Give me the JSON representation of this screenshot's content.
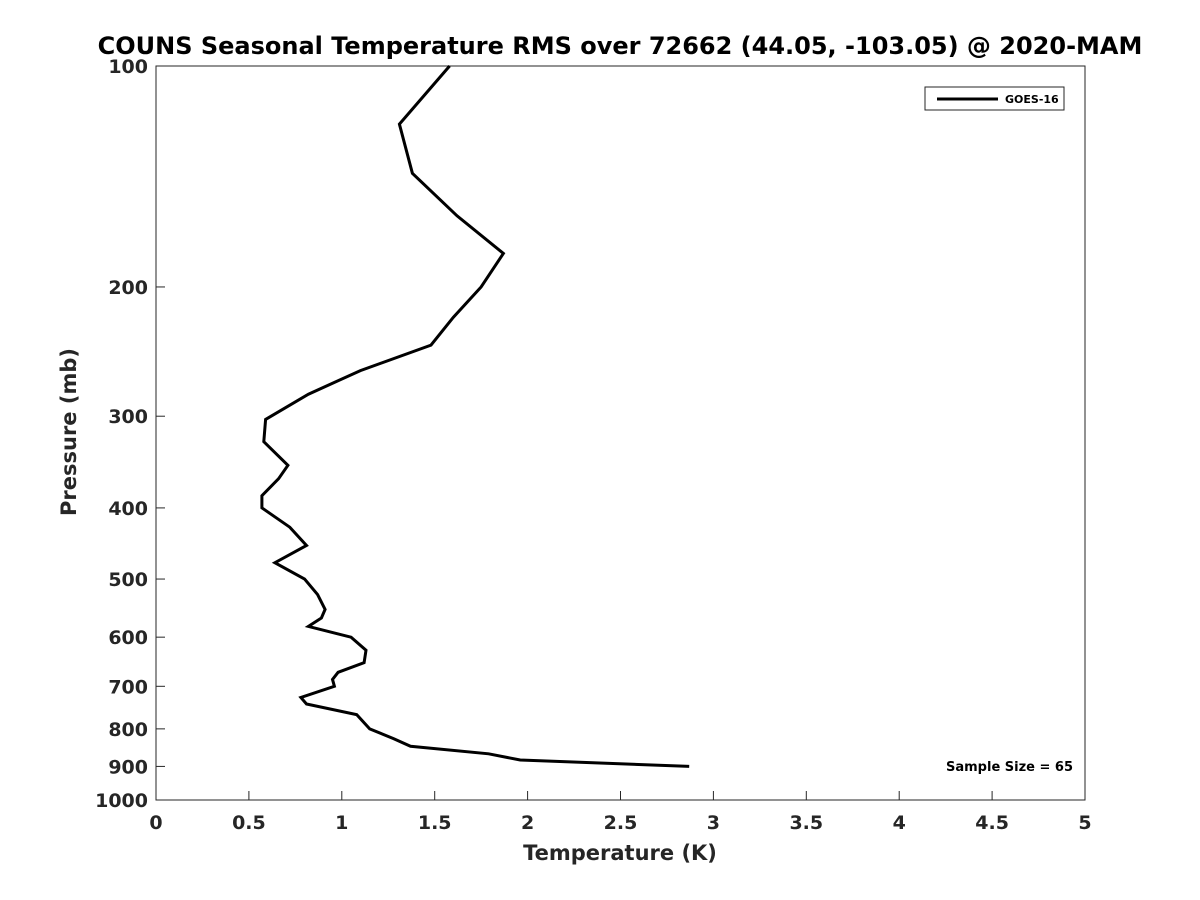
{
  "chart_data": {
    "type": "line",
    "title": "COUNS Seasonal Temperature RMS over 72662 (44.05, -103.05) @ 2020-MAM",
    "xlabel": "Temperature (K)",
    "ylabel": "Pressure (mb)",
    "xlim": [
      0,
      5
    ],
    "ylim": [
      100,
      1000
    ],
    "y_scale": "log",
    "y_reversed": true,
    "x_ticks": [
      "0",
      "0.5",
      "1",
      "1.5",
      "2",
      "2.5",
      "3",
      "3.5",
      "4",
      "4.5",
      "5"
    ],
    "y_ticks": [
      "100",
      "200",
      "300",
      "400",
      "500",
      "600",
      "700",
      "800",
      "900",
      "1000"
    ],
    "grid": false,
    "legend_position": "top-right",
    "series": [
      {
        "name": "GOES-16",
        "color": "#000000",
        "points": [
          {
            "x": 1.58,
            "p": 100
          },
          {
            "x": 1.31,
            "p": 120
          },
          {
            "x": 1.38,
            "p": 140
          },
          {
            "x": 1.62,
            "p": 160
          },
          {
            "x": 1.87,
            "p": 180
          },
          {
            "x": 1.75,
            "p": 200
          },
          {
            "x": 1.6,
            "p": 220
          },
          {
            "x": 1.48,
            "p": 240
          },
          {
            "x": 1.1,
            "p": 260
          },
          {
            "x": 0.82,
            "p": 280
          },
          {
            "x": 0.59,
            "p": 303
          },
          {
            "x": 0.58,
            "p": 325
          },
          {
            "x": 0.71,
            "p": 350
          },
          {
            "x": 0.66,
            "p": 365
          },
          {
            "x": 0.57,
            "p": 385
          },
          {
            "x": 0.57,
            "p": 400
          },
          {
            "x": 0.72,
            "p": 425
          },
          {
            "x": 0.81,
            "p": 450
          },
          {
            "x": 0.64,
            "p": 475
          },
          {
            "x": 0.8,
            "p": 500
          },
          {
            "x": 0.87,
            "p": 525
          },
          {
            "x": 0.91,
            "p": 550
          },
          {
            "x": 0.89,
            "p": 565
          },
          {
            "x": 0.82,
            "p": 580
          },
          {
            "x": 1.05,
            "p": 600
          },
          {
            "x": 1.13,
            "p": 625
          },
          {
            "x": 1.12,
            "p": 650
          },
          {
            "x": 0.98,
            "p": 670
          },
          {
            "x": 0.95,
            "p": 685
          },
          {
            "x": 0.96,
            "p": 700
          },
          {
            "x": 0.78,
            "p": 725
          },
          {
            "x": 0.81,
            "p": 740
          },
          {
            "x": 1.08,
            "p": 765
          },
          {
            "x": 1.15,
            "p": 800
          },
          {
            "x": 1.28,
            "p": 825
          },
          {
            "x": 1.37,
            "p": 845
          },
          {
            "x": 1.79,
            "p": 865
          },
          {
            "x": 1.96,
            "p": 882
          },
          {
            "x": 2.87,
            "p": 900
          }
        ]
      }
    ],
    "annotations": [
      {
        "text": "Sample Size = 65"
      }
    ]
  }
}
